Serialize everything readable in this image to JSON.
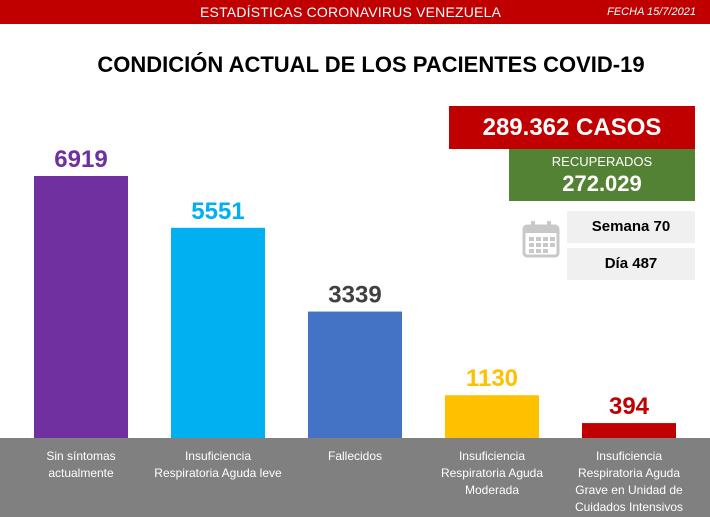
{
  "header": {
    "title": "ESTADÍSTICAS CORONAVIRUS VENEZUELA",
    "date": "FECHA 15/7/2021",
    "bar_color": "#c00000"
  },
  "main_title": "CONDICIÓN ACTUAL DE LOS PACIENTES COVID-19",
  "summary": {
    "casos": "289.362 CASOS",
    "recuperados_label": "RECUPERADOS",
    "recuperados_value": "272.029",
    "semana": "Semana 70",
    "dia": "Día 487",
    "calendar_icon": "calendar-icon"
  },
  "chart_data": {
    "type": "bar",
    "title": "CONDICIÓN ACTUAL DE LOS PACIENTES COVID-19",
    "categories": [
      [
        "Sin síntomas",
        "actualmente"
      ],
      [
        "Insuficiencia",
        "Respiratoria Aguda leve"
      ],
      [
        "Fallecidos"
      ],
      [
        "Insuficiencia",
        "Respiratoria Aguda",
        "Moderada"
      ],
      [
        "Insuficiencia",
        "Respiratoria Aguda",
        "Grave en Unidad de",
        "Cuidados Intensivos"
      ]
    ],
    "values": [
      6919,
      5551,
      3339,
      1130,
      394
    ],
    "value_labels": [
      "6919",
      "5551",
      "3339",
      "1130",
      "394"
    ],
    "colors": [
      "#7030a0",
      "#00b0f0",
      "#4472c4",
      "#ffc000",
      "#c00000"
    ],
    "label_colors": [
      "#7030a0",
      "#00b0f0",
      "#404040",
      "#ffc000",
      "#c00000"
    ],
    "category_band_color": "#808080",
    "ylim": [
      0,
      6919
    ],
    "grid": false,
    "legend": "none"
  }
}
